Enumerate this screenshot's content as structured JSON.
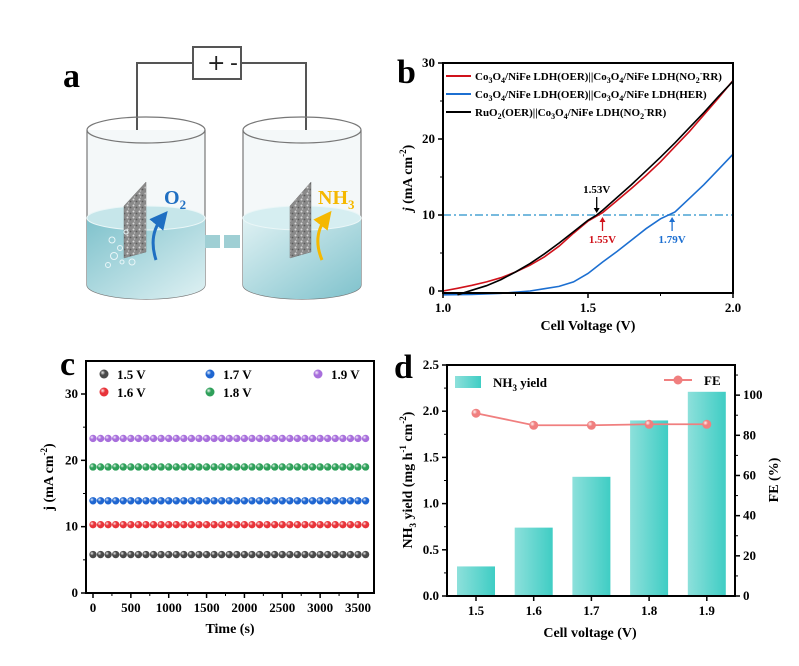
{
  "panels": {
    "a": {
      "label": "a",
      "power_plus": "+",
      "power_minus": "-",
      "anode_product": "O",
      "anode_product_sub": "2",
      "cathode_product": "NH",
      "cathode_product_sub": "3",
      "colors": {
        "water": "#a9d8df",
        "o2": "#1f6fc2",
        "nh3": "#f5b800",
        "membrane": "#9fcfd4"
      }
    }
  },
  "chart_data": [
    {
      "id": "b",
      "panel_label": "b",
      "type": "line",
      "xlabel": "Cell Voltage (V)",
      "ylabel_italic": "j",
      "ylabel_rest": " (mA cm",
      "ylabel_sup": "-2",
      "ylabel_end": ")",
      "xlim": [
        1.0,
        2.0
      ],
      "ylim": [
        -0.5,
        30
      ],
      "xticks": [
        1.0,
        1.5,
        2.0
      ],
      "xtick_labels": [
        "1.0",
        "1.5",
        "2.0"
      ],
      "yticks": [
        0,
        10,
        20,
        30
      ],
      "ytick_labels": [
        "0",
        "10",
        "20",
        "30"
      ],
      "legend_position": "top-left",
      "series": [
        {
          "name": "Co3O4/NiFe LDH(OER)||Co3O4/NiFe LDH(NO2-RR)",
          "legend_html": [
            "Co",
            "3",
            "O",
            "4",
            "/NiFe LDH(OER)||Co",
            "3",
            "O",
            "4",
            "/NiFe LDH(NO",
            "2",
            "-",
            "RR)"
          ],
          "color": "#d0121b",
          "x": [
            1.0,
            1.05,
            1.1,
            1.15,
            1.2,
            1.25,
            1.3,
            1.35,
            1.4,
            1.45,
            1.5,
            1.55,
            1.6,
            1.65,
            1.7,
            1.75,
            1.8,
            1.85,
            1.9,
            1.95,
            2.0
          ],
          "y": [
            0.0,
            0.35,
            0.75,
            1.2,
            1.75,
            2.5,
            3.4,
            4.5,
            5.9,
            7.6,
            9.2,
            10.3,
            11.9,
            13.5,
            15.2,
            17.0,
            19.0,
            21.0,
            23.2,
            25.4,
            27.7
          ]
        },
        {
          "name": "Co3O4/NiFe LDH(OER)||Co3O4/NiFe LDH(HER)",
          "legend_html": [
            "Co",
            "3",
            "O",
            "4",
            "/NiFe LDH(OER)||Co",
            "3",
            "O",
            "4",
            "/NiFe LDH(HER)"
          ],
          "color": "#1c6fd1",
          "x": [
            1.0,
            1.1,
            1.2,
            1.3,
            1.35,
            1.4,
            1.45,
            1.5,
            1.55,
            1.6,
            1.65,
            1.7,
            1.75,
            1.8,
            1.85,
            1.9,
            1.95,
            2.0
          ],
          "y": [
            -0.5,
            -0.45,
            -0.3,
            0.0,
            0.3,
            0.6,
            1.2,
            2.3,
            3.8,
            5.2,
            6.7,
            8.2,
            9.5,
            10.4,
            12.2,
            14.0,
            16.0,
            18.0
          ]
        },
        {
          "name": "RuO2(OER)||Co3O4/NiFe LDH(NO2-RR)",
          "legend_html": [
            "RuO",
            "2",
            "(OER)||Co",
            "3",
            "O",
            "4",
            "/NiFe LDH(NO",
            "2",
            "-",
            "RR)"
          ],
          "color": "#000000",
          "x": [
            1.05,
            1.1,
            1.15,
            1.2,
            1.25,
            1.3,
            1.35,
            1.4,
            1.45,
            1.5,
            1.53,
            1.55,
            1.6,
            1.65,
            1.7,
            1.75,
            1.8,
            1.85,
            1.9,
            1.95,
            2.0
          ],
          "y": [
            -0.5,
            0.1,
            0.7,
            1.5,
            2.5,
            3.6,
            4.9,
            6.3,
            7.8,
            9.3,
            10.0,
            10.6,
            12.3,
            14.0,
            15.8,
            17.6,
            19.5,
            21.5,
            23.5,
            25.6,
            27.6
          ]
        }
      ],
      "reference_line": {
        "y": 10,
        "color": "#4aa3d4",
        "style": "dash-dot"
      },
      "annotations": [
        {
          "text": "1.53V",
          "x": 1.53,
          "color": "#000000",
          "direction": "down"
        },
        {
          "text": "1.55V",
          "x": 1.55,
          "color": "#d0121b",
          "direction": "up"
        },
        {
          "text": "1.79V",
          "x": 1.79,
          "color": "#1c6fd1",
          "direction": "up"
        }
      ]
    },
    {
      "id": "c",
      "panel_label": "c",
      "type": "scatter",
      "xlabel": "Time (s)",
      "ylabel": "j (mA cm",
      "ylabel_sup": "-2",
      "ylabel_end": ")",
      "xlim": [
        -100,
        3720
      ],
      "ylim": [
        0,
        35
      ],
      "xticks": [
        0,
        500,
        1000,
        1500,
        2000,
        2500,
        3000,
        3500
      ],
      "xtick_labels": [
        "0",
        "500",
        "1000",
        "1500",
        "2000",
        "2500",
        "3000",
        "3500"
      ],
      "yticks": [
        0,
        10,
        20,
        30
      ],
      "ytick_labels": [
        "0",
        "10",
        "20",
        "30"
      ],
      "legend_position": "top",
      "x_start": 0,
      "x_end": 3600,
      "x_step": 100,
      "series": [
        {
          "name": "1.5 V",
          "color": "#4a4a4a",
          "value": 5.8
        },
        {
          "name": "1.6 V",
          "color": "#e8343a",
          "value": 10.3
        },
        {
          "name": "1.7 V",
          "color": "#1f66d1",
          "value": 13.9
        },
        {
          "name": "1.8 V",
          "color": "#2fa05a",
          "value": 19.0
        },
        {
          "name": "1.9 V",
          "color": "#a86fdc",
          "value": 23.3
        }
      ]
    },
    {
      "id": "d",
      "panel_label": "d",
      "type": "bar",
      "xlabel": "Cell voltage (V)",
      "ylabel_pre": "NH",
      "ylabel_sub": "3",
      "ylabel_mid": " yield (mg h",
      "ylabel_sup1": "-1",
      "ylabel_mid2": " cm",
      "ylabel_sup2": "-2",
      "ylabel_end": ")",
      "y2label": "FE (%)",
      "categories": [
        "1.5",
        "1.6",
        "1.7",
        "1.8",
        "1.9"
      ],
      "ylim": [
        0,
        2.5
      ],
      "yticks": [
        0,
        0.5,
        1.0,
        1.5,
        2.0,
        2.5
      ],
      "ytick_labels": [
        "0.0",
        "0.5",
        "1.0",
        "1.5",
        "2.0",
        "2.5"
      ],
      "y2lim": [
        0,
        115
      ],
      "y2ticks": [
        0,
        20,
        40,
        60,
        80,
        100
      ],
      "y2tick_labels": [
        "0",
        "20",
        "40",
        "60",
        "80",
        "100"
      ],
      "legend_position": "top",
      "series": [
        {
          "name": "NH3 yield",
          "legend_pre": "NH",
          "legend_sub": "3",
          "legend_post": " yield",
          "type": "bar",
          "axis": "left",
          "color": "#4fd1c9",
          "values": [
            0.32,
            0.74,
            1.29,
            1.9,
            2.21
          ]
        },
        {
          "name": "FE",
          "type": "line",
          "axis": "right",
          "color": "#f07f7f",
          "values": [
            91,
            85,
            85,
            85.5,
            85.5
          ]
        }
      ]
    }
  ]
}
